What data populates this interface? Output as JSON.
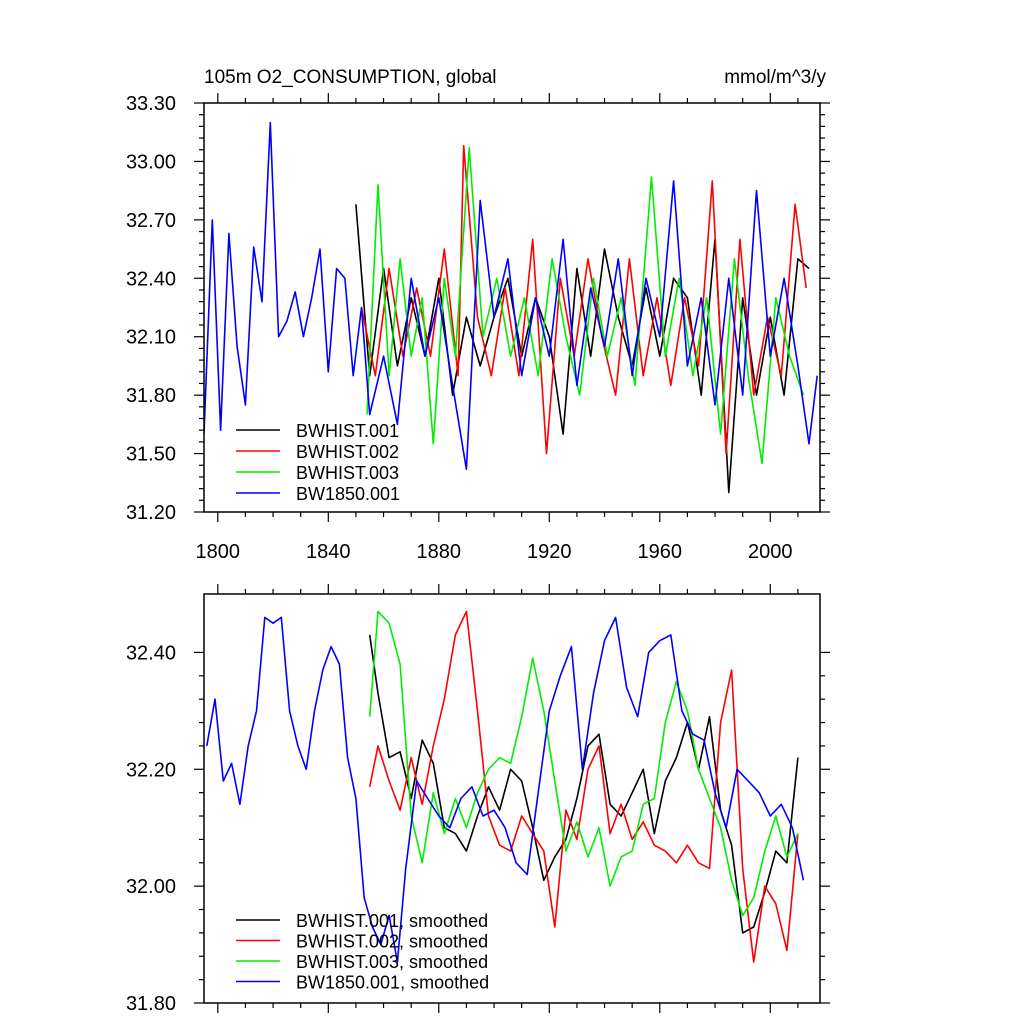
{
  "chart_data": [
    {
      "type": "line",
      "title": "105m O2_CONSUMPTION, global",
      "units": "mmol/m^3/y",
      "xlabel": "",
      "ylabel": "",
      "xlim": [
        1795,
        2018
      ],
      "ylim": [
        31.2,
        33.3
      ],
      "xticks": [
        1800,
        1840,
        1880,
        1920,
        1960,
        2000
      ],
      "xtick_labels": [
        "1800",
        "1840",
        "1880",
        "1920",
        "1960",
        "2000"
      ],
      "yticks": [
        31.2,
        31.5,
        31.8,
        32.1,
        32.4,
        32.7,
        33.0,
        33.3
      ],
      "ytick_labels": [
        "31.20",
        "31.50",
        "31.80",
        "32.10",
        "32.40",
        "32.70",
        "33.00",
        "33.30"
      ],
      "legend_position": "bottom-left",
      "series": [
        {
          "name": "BWHIST.001",
          "color": "#000000",
          "x": [
            1850,
            1855,
            1860,
            1865,
            1870,
            1875,
            1880,
            1885,
            1890,
            1895,
            1900,
            1905,
            1910,
            1915,
            1920,
            1925,
            1930,
            1935,
            1940,
            1945,
            1950,
            1955,
            1960,
            1965,
            1970,
            1975,
            1980,
            1985,
            1990,
            1995,
            2000,
            2005,
            2010,
            2014
          ],
          "values": [
            32.78,
            31.9,
            32.45,
            31.95,
            32.3,
            32.0,
            32.4,
            31.8,
            32.2,
            31.95,
            32.2,
            32.4,
            32.0,
            32.3,
            32.1,
            31.6,
            32.45,
            32.0,
            32.55,
            32.2,
            31.95,
            32.35,
            32.0,
            32.4,
            32.3,
            31.8,
            32.6,
            31.3,
            32.3,
            31.8,
            32.2,
            31.8,
            32.5,
            32.45
          ]
        },
        {
          "name": "BWHIST.002",
          "color": "#ff0000",
          "x": [
            1852,
            1857,
            1862,
            1867,
            1872,
            1877,
            1882,
            1887,
            1889,
            1894,
            1899,
            1904,
            1909,
            1914,
            1919,
            1924,
            1929,
            1934,
            1939,
            1944,
            1949,
            1954,
            1959,
            1964,
            1969,
            1974,
            1979,
            1984,
            1989,
            1994,
            1999,
            2004,
            2009,
            2013
          ],
          "values": [
            32.25,
            31.9,
            32.45,
            32.0,
            32.35,
            32.0,
            32.55,
            31.9,
            33.08,
            32.2,
            31.9,
            32.35,
            31.9,
            32.6,
            31.5,
            32.4,
            32.0,
            32.5,
            32.1,
            31.8,
            32.5,
            31.9,
            32.3,
            31.85,
            32.3,
            31.95,
            32.9,
            31.5,
            32.6,
            31.8,
            32.2,
            31.9,
            32.78,
            32.35
          ]
        },
        {
          "name": "BWHIST.003",
          "color": "#00ee00",
          "x": [
            1854,
            1858,
            1862,
            1866,
            1870,
            1874,
            1878,
            1882,
            1886,
            1891,
            1896,
            1901,
            1906,
            1911,
            1916,
            1921,
            1926,
            1931,
            1936,
            1941,
            1946,
            1951,
            1957,
            1962,
            1967,
            1972,
            1977,
            1982,
            1987,
            1992,
            1997,
            2002,
            2007,
            2012
          ],
          "values": [
            31.7,
            32.88,
            31.9,
            32.5,
            32.0,
            32.3,
            31.55,
            32.4,
            32.0,
            33.07,
            32.1,
            32.4,
            32.0,
            32.3,
            31.9,
            32.5,
            32.1,
            31.8,
            32.4,
            32.0,
            32.3,
            31.85,
            32.92,
            32.0,
            32.4,
            31.9,
            32.3,
            31.6,
            32.5,
            31.9,
            31.45,
            32.3,
            32.0,
            31.8
          ]
        },
        {
          "name": "BW1850.001",
          "color": "#0000ff",
          "x": [
            1795,
            1798,
            1801,
            1804,
            1807,
            1810,
            1813,
            1816,
            1819,
            1822,
            1825,
            1828,
            1831,
            1834,
            1837,
            1840,
            1843,
            1846,
            1849,
            1852,
            1855,
            1860,
            1865,
            1870,
            1875,
            1880,
            1885,
            1890,
            1895,
            1900,
            1905,
            1910,
            1915,
            1920,
            1925,
            1930,
            1935,
            1940,
            1945,
            1950,
            1955,
            1960,
            1965,
            1970,
            1975,
            1980,
            1985,
            1990,
            1995,
            2000,
            2005,
            2010,
            2014,
            2017
          ],
          "values": [
            31.6,
            32.7,
            31.62,
            32.63,
            32.05,
            31.75,
            32.56,
            32.28,
            33.2,
            32.1,
            32.18,
            32.33,
            32.1,
            32.3,
            32.55,
            31.92,
            32.45,
            32.4,
            31.9,
            32.25,
            31.7,
            32.0,
            31.65,
            32.4,
            32.0,
            32.3,
            31.85,
            31.42,
            32.8,
            32.2,
            32.5,
            31.9,
            32.3,
            32.0,
            32.6,
            31.85,
            32.35,
            32.05,
            32.5,
            31.9,
            32.4,
            32.1,
            32.9,
            31.95,
            32.3,
            31.75,
            32.4,
            31.8,
            32.85,
            32.0,
            32.4,
            31.95,
            31.55,
            31.9
          ]
        }
      ]
    },
    {
      "type": "line",
      "title": "",
      "xlabel": "",
      "ylabel": "",
      "xlim": [
        1795,
        2018
      ],
      "ylim": [
        31.8,
        32.5
      ],
      "xticks": [
        1800,
        1840,
        1880,
        1920,
        1960,
        2000
      ],
      "yticks": [
        31.8,
        32.0,
        32.2,
        32.4
      ],
      "ytick_labels": [
        "31.80",
        "32.00",
        "32.20",
        "32.40"
      ],
      "legend_position": "bottom-left",
      "series": [
        {
          "name": "BWHIST.001, smoothed",
          "color": "#000000",
          "x": [
            1855,
            1858,
            1862,
            1866,
            1870,
            1874,
            1878,
            1882,
            1886,
            1890,
            1894,
            1898,
            1902,
            1906,
            1910,
            1914,
            1918,
            1922,
            1926,
            1930,
            1934,
            1938,
            1942,
            1946,
            1950,
            1954,
            1958,
            1962,
            1966,
            1970,
            1974,
            1978,
            1982,
            1986,
            1990,
            1994,
            1998,
            2002,
            2006,
            2010
          ],
          "values": [
            32.43,
            32.33,
            32.22,
            32.23,
            32.15,
            32.25,
            32.21,
            32.1,
            32.09,
            32.06,
            32.12,
            32.17,
            32.13,
            32.2,
            32.18,
            32.1,
            32.01,
            32.05,
            32.08,
            32.15,
            32.24,
            32.26,
            32.14,
            32.12,
            32.16,
            32.2,
            32.09,
            32.18,
            32.22,
            32.28,
            32.2,
            32.29,
            32.13,
            32.07,
            31.92,
            31.93,
            31.99,
            32.06,
            32.04,
            32.22
          ]
        },
        {
          "name": "BWHIST.002, smoothed",
          "color": "#ff0000",
          "x": [
            1855,
            1858,
            1862,
            1866,
            1870,
            1874,
            1878,
            1882,
            1886,
            1890,
            1894,
            1898,
            1902,
            1906,
            1910,
            1914,
            1918,
            1922,
            1926,
            1930,
            1934,
            1938,
            1942,
            1946,
            1950,
            1954,
            1958,
            1962,
            1966,
            1970,
            1974,
            1978,
            1982,
            1986,
            1990,
            1994,
            1998,
            2002,
            2006,
            2010
          ],
          "values": [
            32.17,
            32.24,
            32.18,
            32.13,
            32.22,
            32.14,
            32.24,
            32.32,
            32.43,
            32.47,
            32.3,
            32.12,
            32.07,
            32.06,
            32.12,
            32.09,
            32.06,
            31.93,
            32.13,
            32.08,
            32.2,
            32.24,
            32.09,
            32.14,
            32.08,
            32.11,
            32.07,
            32.06,
            32.04,
            32.07,
            32.04,
            32.03,
            32.28,
            32.37,
            32.03,
            31.87,
            32.0,
            31.97,
            31.89,
            32.09
          ]
        },
        {
          "name": "BWHIST.003, smoothed",
          "color": "#00ee00",
          "x": [
            1855,
            1858,
            1862,
            1866,
            1870,
            1874,
            1878,
            1882,
            1886,
            1890,
            1894,
            1898,
            1902,
            1906,
            1910,
            1914,
            1918,
            1922,
            1926,
            1930,
            1934,
            1938,
            1942,
            1946,
            1950,
            1954,
            1958,
            1962,
            1966,
            1970,
            1974,
            1978,
            1982,
            1986,
            1990,
            1994,
            1998,
            2002,
            2006,
            2010
          ],
          "values": [
            32.29,
            32.47,
            32.45,
            32.38,
            32.12,
            32.04,
            32.16,
            32.09,
            32.15,
            32.1,
            32.16,
            32.2,
            32.22,
            32.21,
            32.29,
            32.39,
            32.3,
            32.18,
            32.06,
            32.11,
            32.05,
            32.1,
            32.0,
            32.05,
            32.06,
            32.14,
            32.15,
            32.28,
            32.35,
            32.3,
            32.2,
            32.15,
            32.1,
            32.01,
            31.95,
            31.98,
            32.06,
            32.12,
            32.05,
            32.09
          ]
        },
        {
          "name": "BW1850.001, smoothed",
          "color": "#0000ff",
          "x": [
            1796,
            1799,
            1802,
            1805,
            1808,
            1811,
            1814,
            1817,
            1820,
            1823,
            1826,
            1829,
            1832,
            1835,
            1838,
            1841,
            1844,
            1847,
            1850,
            1853,
            1856,
            1859,
            1862,
            1865,
            1868,
            1872,
            1876,
            1880,
            1884,
            1888,
            1892,
            1896,
            1900,
            1904,
            1908,
            1912,
            1916,
            1920,
            1924,
            1928,
            1932,
            1936,
            1940,
            1944,
            1948,
            1952,
            1956,
            1960,
            1964,
            1968,
            1972,
            1976,
            1980,
            1984,
            1988,
            1992,
            1996,
            2000,
            2004,
            2008,
            2012
          ],
          "values": [
            32.24,
            32.32,
            32.18,
            32.21,
            32.14,
            32.24,
            32.3,
            32.46,
            32.45,
            32.46,
            32.3,
            32.24,
            32.2,
            32.3,
            32.37,
            32.41,
            32.38,
            32.22,
            32.15,
            31.98,
            31.93,
            31.9,
            31.95,
            31.87,
            32.03,
            32.18,
            32.15,
            32.12,
            32.1,
            32.15,
            32.17,
            32.12,
            32.13,
            32.1,
            32.04,
            32.02,
            32.16,
            32.3,
            32.36,
            32.41,
            32.2,
            32.33,
            32.42,
            32.46,
            32.34,
            32.29,
            32.4,
            32.42,
            32.43,
            32.3,
            32.26,
            32.25,
            32.16,
            32.1,
            32.2,
            32.18,
            32.16,
            32.12,
            32.14,
            32.1,
            32.01
          ]
        }
      ]
    }
  ]
}
